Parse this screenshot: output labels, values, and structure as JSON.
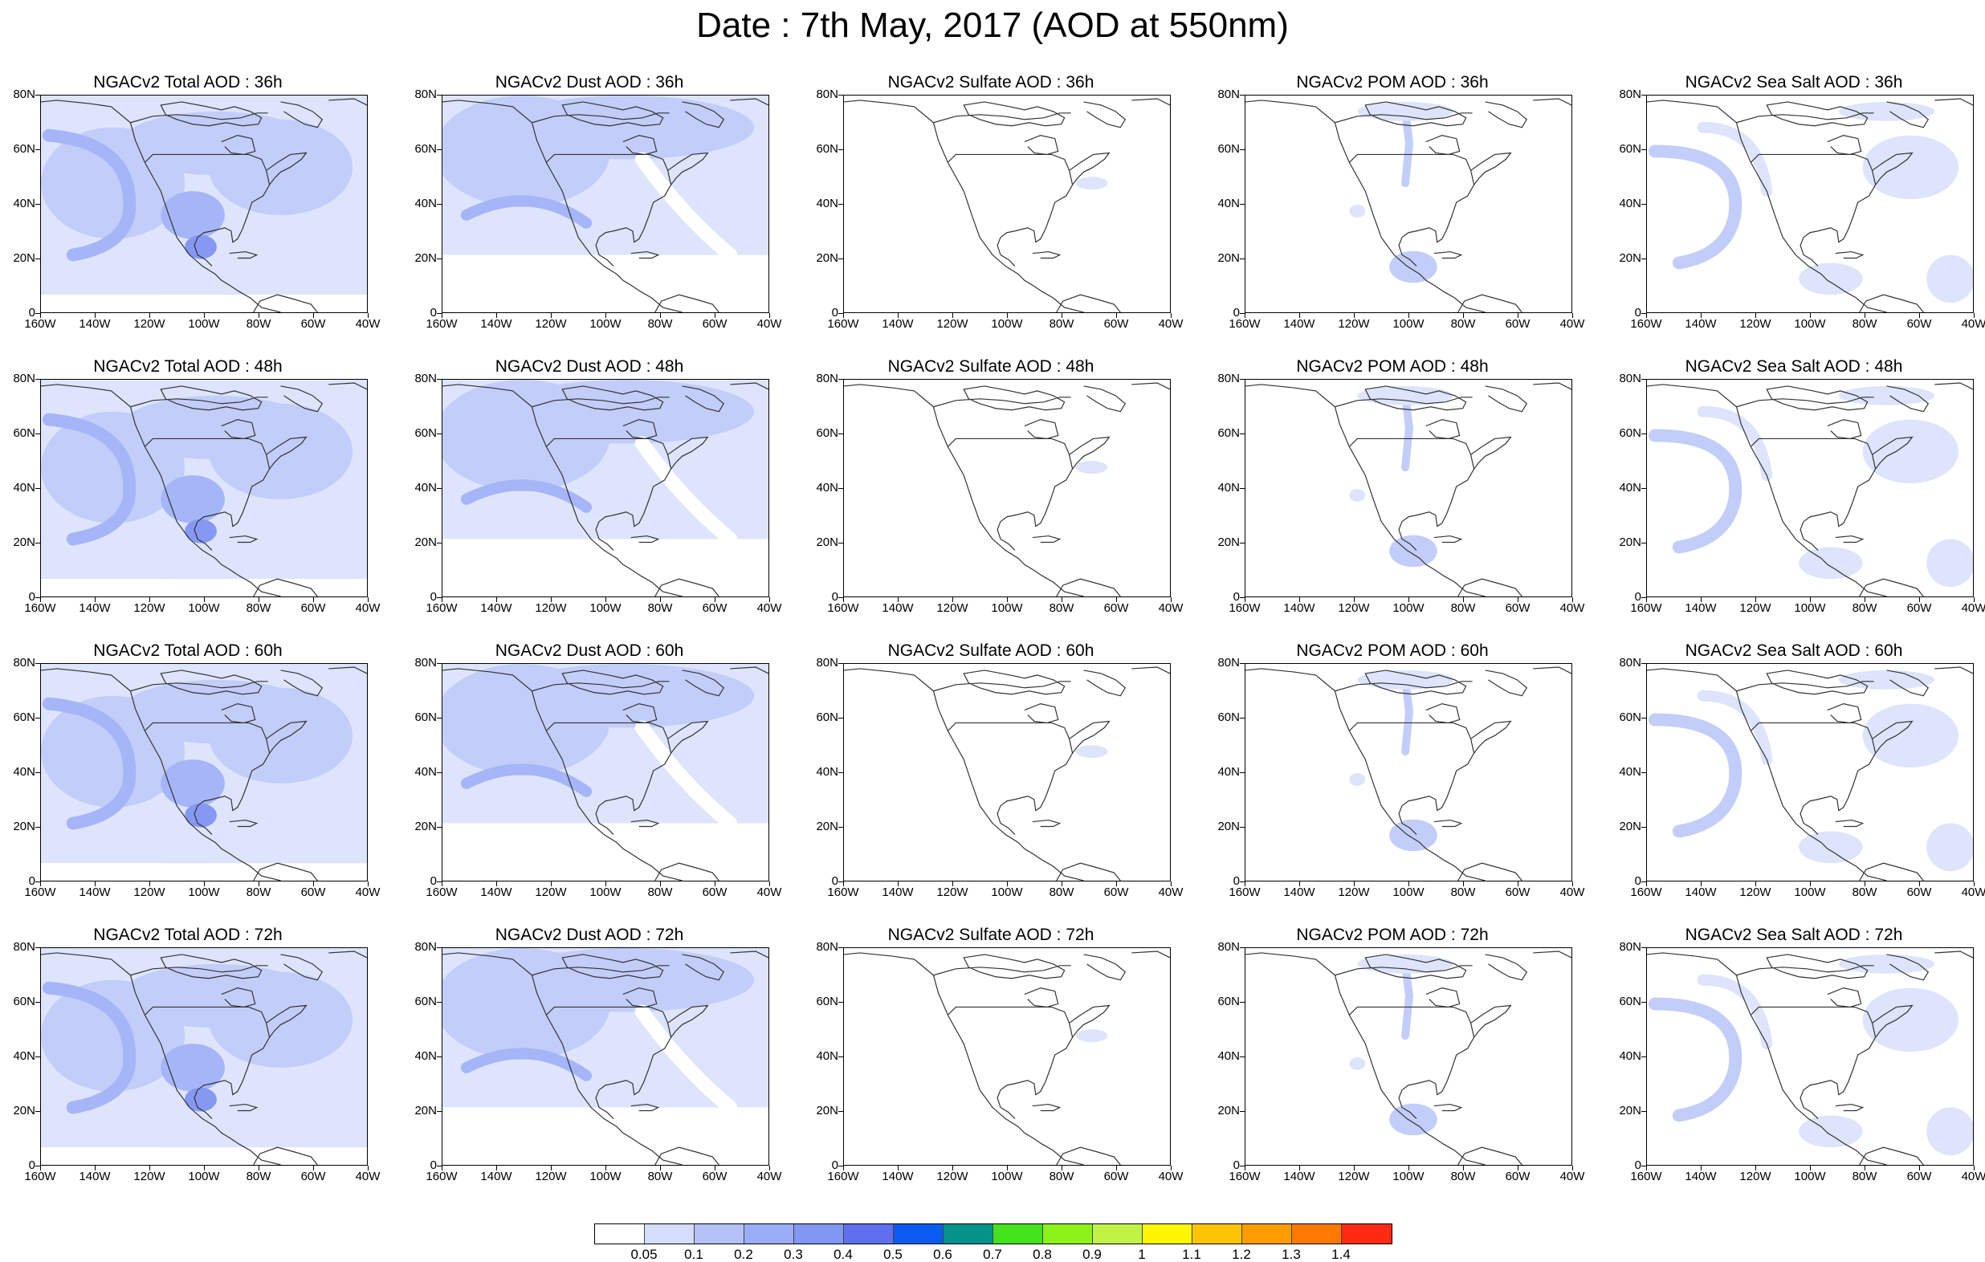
{
  "title": "Date : 7th May, 2017 (AOD at 550nm)",
  "panels": [
    {
      "title": "NGACv2 Total AOD : 36h",
      "variable": "total",
      "forecast": "36h"
    },
    {
      "title": "NGACv2 Dust AOD : 36h",
      "variable": "dust",
      "forecast": "36h"
    },
    {
      "title": "NGACv2 Sulfate AOD : 36h",
      "variable": "sulfate",
      "forecast": "36h"
    },
    {
      "title": "NGACv2 POM AOD : 36h",
      "variable": "pom",
      "forecast": "36h"
    },
    {
      "title": "NGACv2 Sea Salt AOD : 36h",
      "variable": "seasalt",
      "forecast": "36h"
    },
    {
      "title": "NGACv2 Total AOD : 48h",
      "variable": "total",
      "forecast": "48h"
    },
    {
      "title": "NGACv2 Dust AOD : 48h",
      "variable": "dust",
      "forecast": "48h"
    },
    {
      "title": "NGACv2 Sulfate AOD : 48h",
      "variable": "sulfate",
      "forecast": "48h"
    },
    {
      "title": "NGACv2 POM AOD : 48h",
      "variable": "pom",
      "forecast": "48h"
    },
    {
      "title": "NGACv2 Sea Salt AOD : 48h",
      "variable": "seasalt",
      "forecast": "48h"
    },
    {
      "title": "NGACv2 Total AOD : 60h",
      "variable": "total",
      "forecast": "60h"
    },
    {
      "title": "NGACv2 Dust AOD : 60h",
      "variable": "dust",
      "forecast": "60h"
    },
    {
      "title": "NGACv2 Sulfate AOD : 60h",
      "variable": "sulfate",
      "forecast": "60h"
    },
    {
      "title": "NGACv2 POM AOD : 60h",
      "variable": "pom",
      "forecast": "60h"
    },
    {
      "title": "NGACv2 Sea Salt AOD : 60h",
      "variable": "seasalt",
      "forecast": "60h"
    },
    {
      "title": "NGACv2 Total AOD : 72h",
      "variable": "total",
      "forecast": "72h"
    },
    {
      "title": "NGACv2 Dust AOD : 72h",
      "variable": "dust",
      "forecast": "72h"
    },
    {
      "title": "NGACv2 Sulfate AOD : 72h",
      "variable": "sulfate",
      "forecast": "72h"
    },
    {
      "title": "NGACv2 POM AOD : 72h",
      "variable": "pom",
      "forecast": "72h"
    },
    {
      "title": "NGACv2 Sea Salt  AOD : 72h",
      "variable": "seasalt",
      "forecast": "72h"
    }
  ],
  "axes": {
    "lat_labels": [
      "80N",
      "60N",
      "40N",
      "20N",
      "0"
    ],
    "lon_labels": [
      "160W",
      "140W",
      "120W",
      "100W",
      "80W",
      "60W",
      "40W"
    ],
    "lat_range": [
      0,
      80
    ],
    "lon_range": [
      -160,
      -40
    ]
  },
  "legend": {
    "labels": [
      "0.05",
      "0.1",
      "0.2",
      "0.3",
      "0.4",
      "0.5",
      "0.6",
      "0.7",
      "0.8",
      "0.9",
      "1",
      "1.1",
      "1.2",
      "1.3",
      "1.4"
    ],
    "colors": [
      "#ffffff",
      "#d5ddfb",
      "#b4c2f8",
      "#9aadf6",
      "#8197f3",
      "#5f6fee",
      "#0a5cf0",
      "#04928a",
      "#42e21c",
      "#8cf21a",
      "#c2f246",
      "#fff600",
      "#ffc400",
      "#ff9c00",
      "#ff7800",
      "#ff2a10"
    ]
  },
  "colors": {
    "aod_light": "#dde4fc",
    "aod_mid": "#c2cdf9",
    "aod_strong": "#a5b5f7",
    "aod_peak": "#8698f2",
    "coastline": "#333333"
  }
}
